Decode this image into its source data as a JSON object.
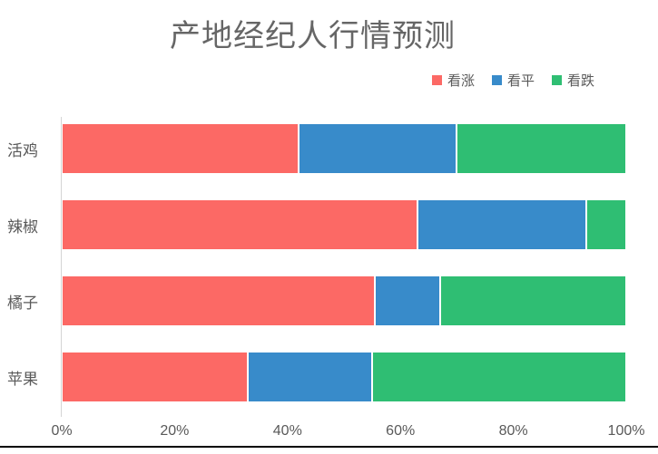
{
  "chart_data": {
    "type": "bar",
    "orientation": "horizontal",
    "stacked": true,
    "title": "产地经纪人行情预测",
    "categories": [
      "活鸡",
      "辣椒",
      "橘子",
      "苹果"
    ],
    "series": [
      {
        "name": "看涨",
        "color": "#fc6965",
        "values": [
          42,
          63,
          55.5,
          33
        ]
      },
      {
        "name": "看平",
        "color": "#388bca",
        "values": [
          28,
          30,
          11.5,
          22
        ]
      },
      {
        "name": "看跌",
        "color": "#2fbe73",
        "values": [
          30,
          7,
          33,
          45
        ]
      }
    ],
    "x_ticks": [
      "0%",
      "20%",
      "40%",
      "60%",
      "80%",
      "100%"
    ],
    "xlim": [
      0,
      100
    ],
    "xlabel": "",
    "ylabel": "",
    "legend_position": "top-right",
    "grid": false,
    "unit": "percent"
  },
  "style": {
    "title_color": "#666666",
    "label_color": "#595959",
    "axis_line_color": "#d4d4d4",
    "background": "#ffffff",
    "bottom_rule_color": "#000000"
  }
}
